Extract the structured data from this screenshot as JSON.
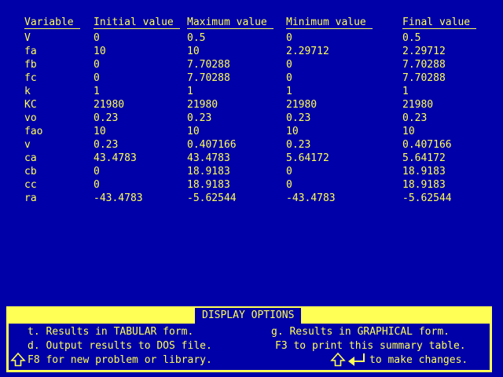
{
  "palette": {
    "background_blue": "#0000A8",
    "text_yellow": "#FFFF55",
    "panel_yellow": "#FFFF55"
  },
  "table": {
    "columns": [
      "Variable",
      "Initial value",
      "Maximum value",
      "Minimum value",
      "Final value"
    ],
    "rows": [
      {
        "variable": "V",
        "initial": "0",
        "maximum": "0.5",
        "minimum": "0",
        "final": "0.5"
      },
      {
        "variable": "fa",
        "initial": "10",
        "maximum": "10",
        "minimum": "2.29712",
        "final": "2.29712"
      },
      {
        "variable": "fb",
        "initial": "0",
        "maximum": "7.70288",
        "minimum": "0",
        "final": "7.70288"
      },
      {
        "variable": "fc",
        "initial": "0",
        "maximum": "7.70288",
        "minimum": "0",
        "final": "7.70288"
      },
      {
        "variable": "k",
        "initial": "1",
        "maximum": "1",
        "minimum": "1",
        "final": "1"
      },
      {
        "variable": "KC",
        "initial": "21980",
        "maximum": "21980",
        "minimum": "21980",
        "final": "21980"
      },
      {
        "variable": "vo",
        "initial": "0.23",
        "maximum": "0.23",
        "minimum": "0.23",
        "final": "0.23"
      },
      {
        "variable": "fao",
        "initial": "10",
        "maximum": "10",
        "minimum": "10",
        "final": "10"
      },
      {
        "variable": "v",
        "initial": "0.23",
        "maximum": "0.407166",
        "minimum": "0.23",
        "final": "0.407166"
      },
      {
        "variable": "ca",
        "initial": "43.4783",
        "maximum": "43.4783",
        "minimum": "5.64172",
        "final": "5.64172"
      },
      {
        "variable": "cb",
        "initial": "0",
        "maximum": "18.9183",
        "minimum": "0",
        "final": "18.9183"
      },
      {
        "variable": "cc",
        "initial": "0",
        "maximum": "18.9183",
        "minimum": "0",
        "final": "18.9183"
      },
      {
        "variable": "ra",
        "initial": "-43.4783",
        "maximum": "-5.62544",
        "minimum": "-43.4783",
        "final": "-5.62544"
      }
    ]
  },
  "options_panel": {
    "title": "DISPLAY OPTIONS",
    "left_options": [
      "t. Results in TABULAR form.",
      "d. Output results to DOS file.",
      "F8 for new problem or library."
    ],
    "right_options": [
      "g. Results in GRAPHICAL form.",
      "F3 to print this summary table.",
      "to make changes."
    ],
    "icons": {
      "shift": "shift-up-arrow",
      "enter": "enter-return-arrow"
    }
  }
}
